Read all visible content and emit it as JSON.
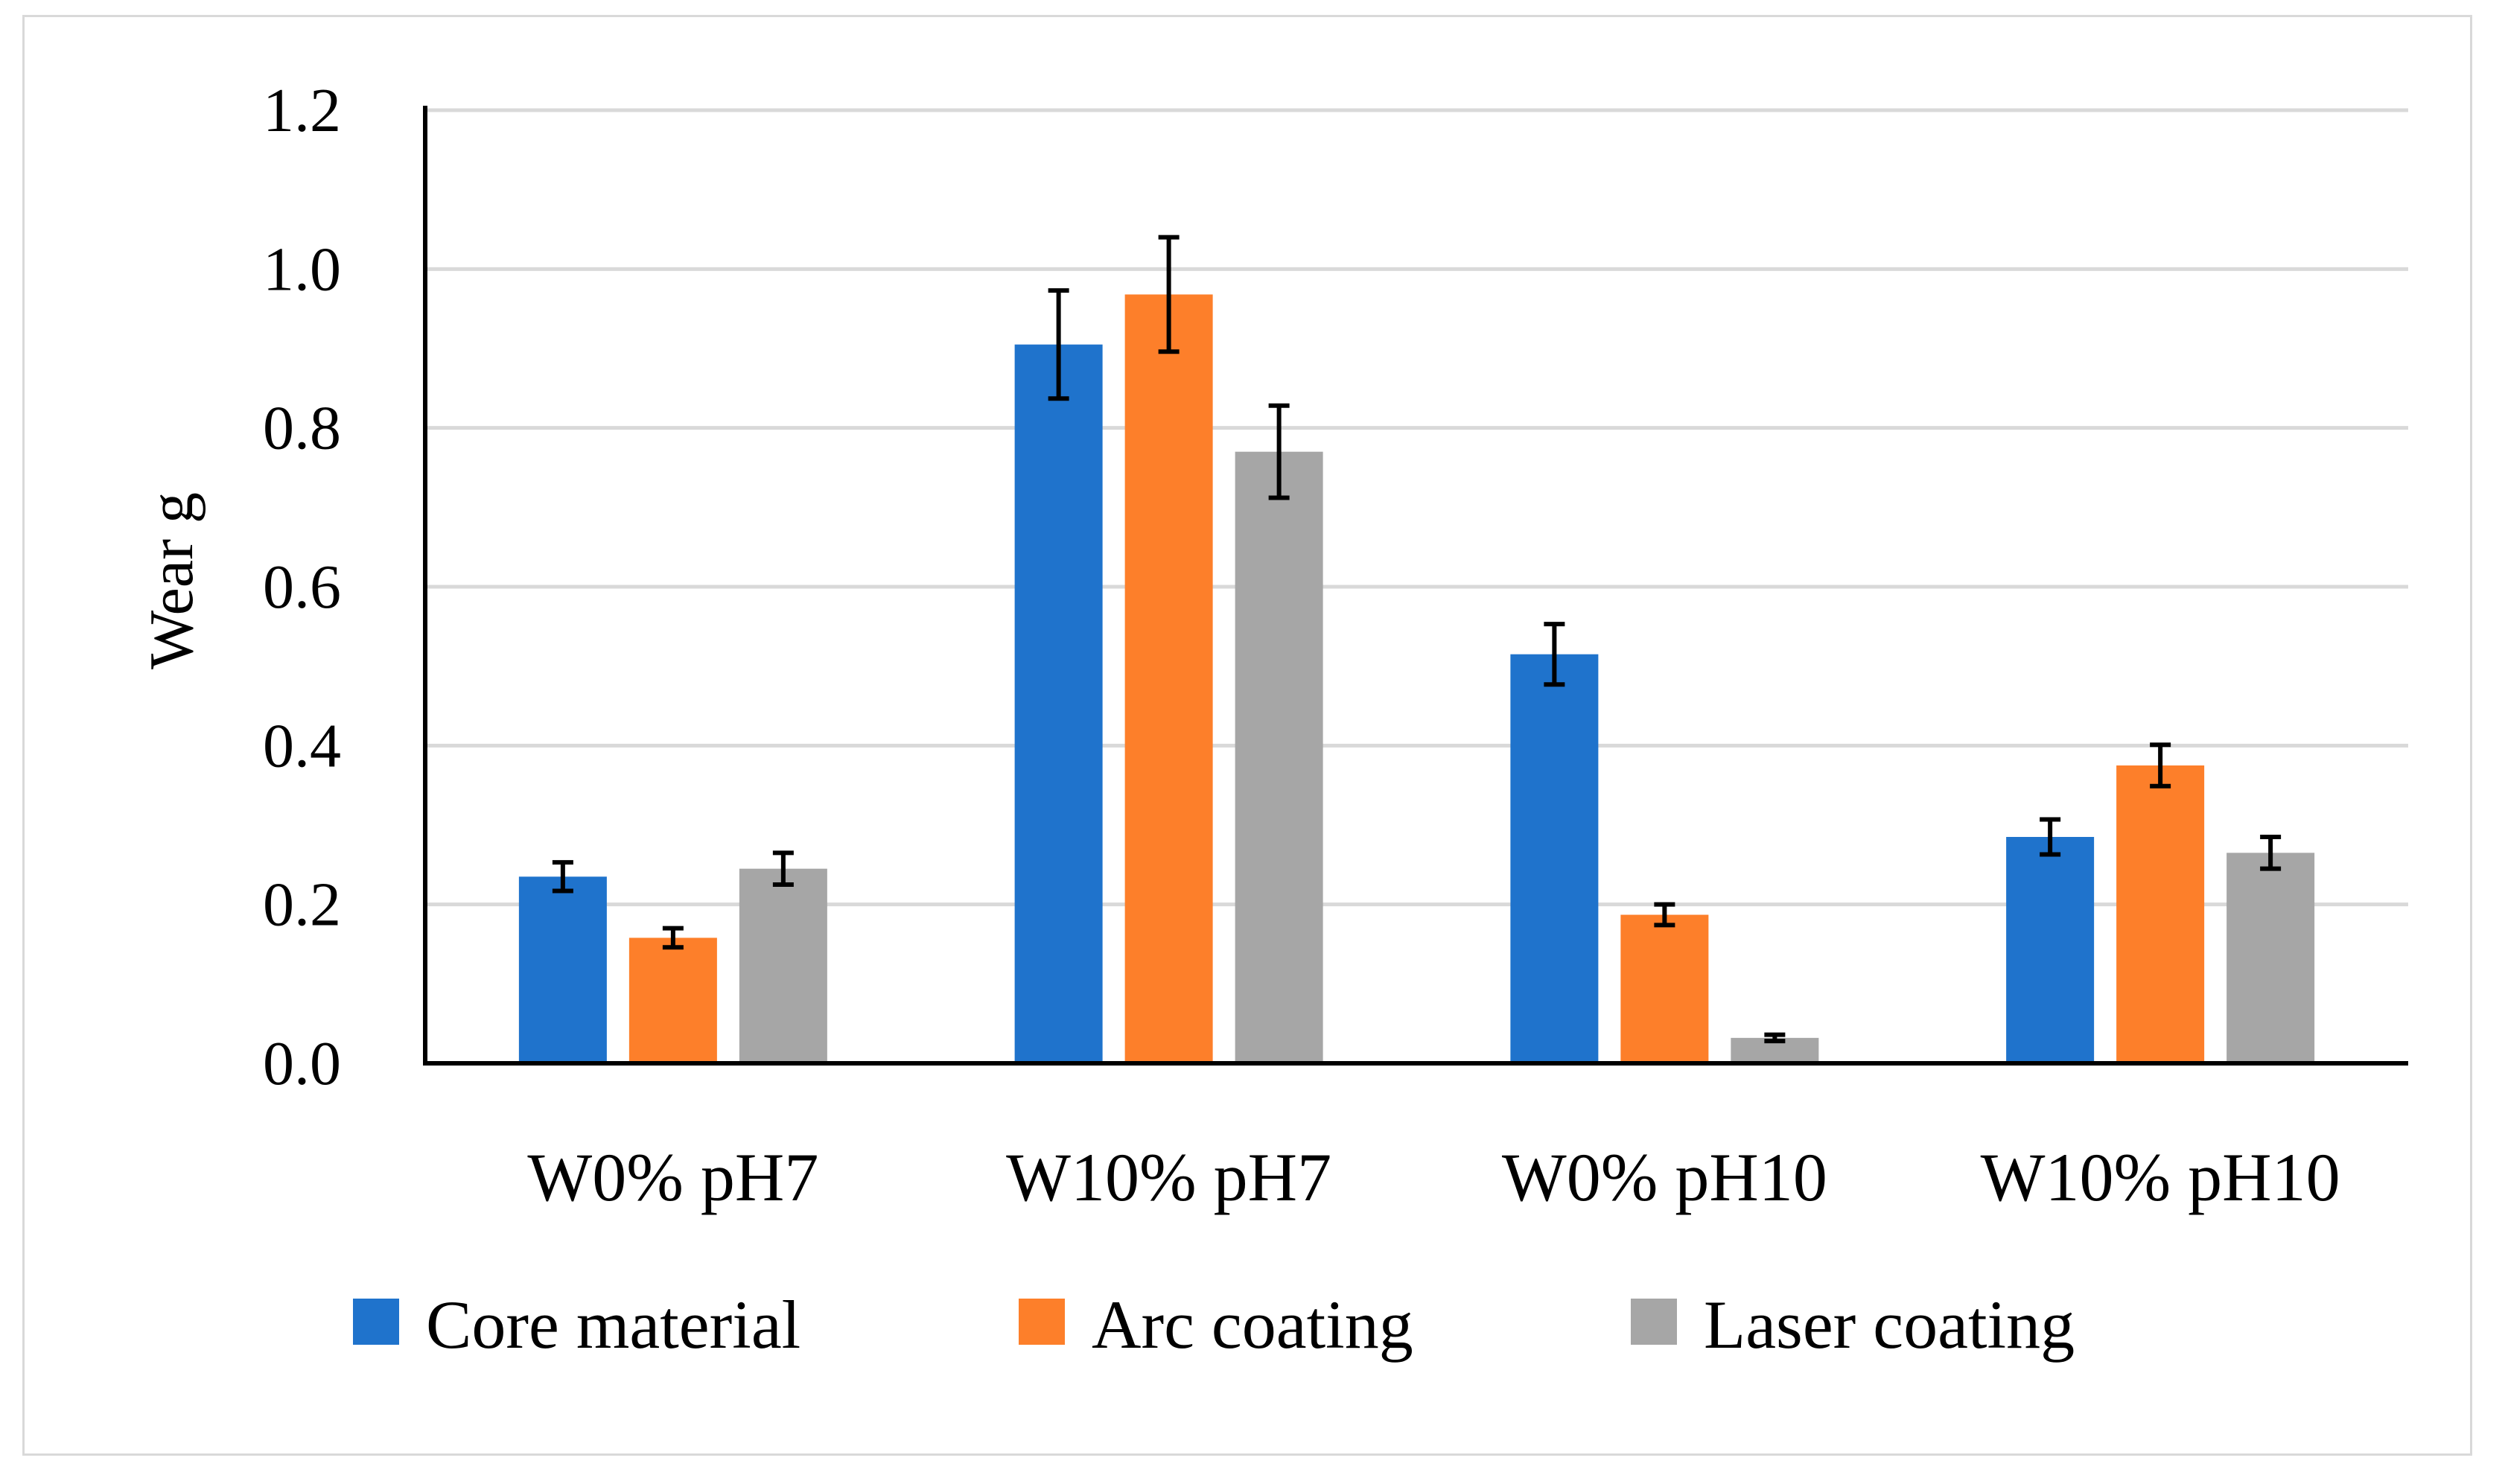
{
  "chart_data": {
    "type": "bar",
    "title": "",
    "xlabel": "",
    "ylabel": "Wear g",
    "ylim": [
      0,
      1.2
    ],
    "yticks": [
      "0.0",
      "0.2",
      "0.4",
      "0.6",
      "0.8",
      "1.0",
      "1.2"
    ],
    "grid": true,
    "legend_position": "bottom",
    "categories": [
      "W0% pH7",
      "W10% pH7",
      "W0% pH10",
      "W10% pH10"
    ],
    "series": [
      {
        "name": "Core material",
        "color": "#1f73cc",
        "values": [
          0.235,
          0.905,
          0.515,
          0.285
        ],
        "errors": [
          0.018,
          0.068,
          0.038,
          0.022
        ]
      },
      {
        "name": "Arc coating",
        "color": "#fd7f2a",
        "values": [
          0.158,
          0.968,
          0.187,
          0.375
        ],
        "errors": [
          0.012,
          0.072,
          0.013,
          0.026
        ]
      },
      {
        "name": "Laser coating",
        "color": "#a6a6a6",
        "values": [
          0.245,
          0.77,
          0.032,
          0.265
        ],
        "errors": [
          0.02,
          0.058,
          0.004,
          0.02
        ]
      }
    ]
  }
}
